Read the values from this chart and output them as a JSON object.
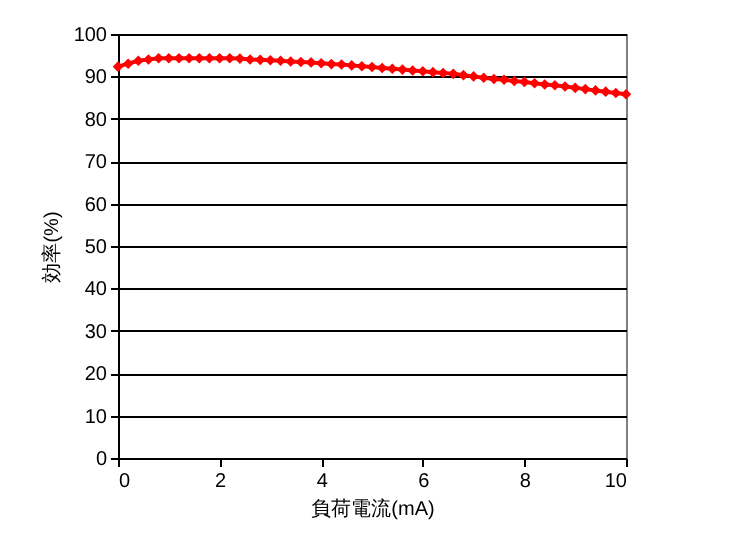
{
  "chart_data": {
    "type": "line",
    "xlabel": "負荷電流(mA)",
    "ylabel": "効率(%)",
    "x": [
      0,
      0.2,
      0.4,
      0.6,
      0.8,
      1,
      1.2,
      1.4,
      1.6,
      1.8,
      2,
      2.2,
      2.4,
      2.6,
      2.8,
      3,
      3.2,
      3.4,
      3.6,
      3.8,
      4,
      4.2,
      4.4,
      4.6,
      4.8,
      5,
      5.2,
      5.4,
      5.6,
      5.8,
      6,
      6.2,
      6.4,
      6.6,
      6.8,
      7,
      7.2,
      7.4,
      7.6,
      7.8,
      8,
      8.2,
      8.4,
      8.6,
      8.8,
      9,
      9.2,
      9.4,
      9.6,
      9.8,
      10
    ],
    "series": [
      {
        "color": "#ff0000",
        "values": [
          92.3,
          93,
          93.7,
          94,
          94.3,
          94.3,
          94.3,
          94.3,
          94.3,
          94.3,
          94.3,
          94.3,
          94.2,
          94,
          93.9,
          93.8,
          93.7,
          93.5,
          93.4,
          93.3,
          93.1,
          92.9,
          92.8,
          92.6,
          92.4,
          92.2,
          92,
          91.8,
          91.6,
          91.4,
          91.2,
          91,
          90.8,
          90.6,
          90.3,
          90,
          89.7,
          89.4,
          89.2,
          88.9,
          88.7,
          88.4,
          88.1,
          87.9,
          87.6,
          87.3,
          87,
          86.7,
          86.4,
          86.1,
          85.8
        ]
      }
    ],
    "xlim": [
      0,
      10
    ],
    "xticks": [
      0,
      2,
      4,
      6,
      8,
      10
    ],
    "ylim": [
      0,
      100
    ],
    "yticks": [
      0,
      10,
      20,
      30,
      40,
      50,
      60,
      70,
      80,
      90,
      100
    ],
    "grid": "y",
    "marker": "diamond"
  }
}
